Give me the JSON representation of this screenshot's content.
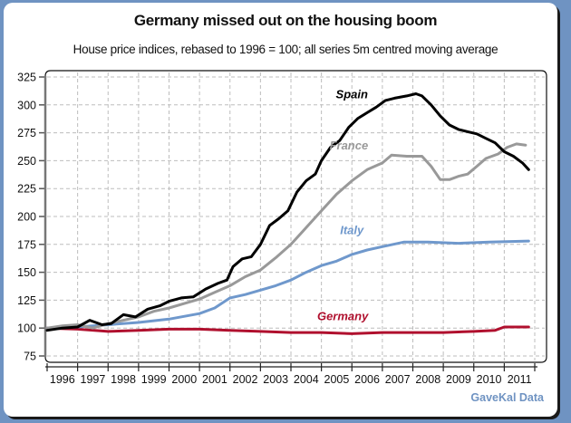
{
  "chart_data": {
    "type": "line",
    "title": "Germany missed out on the housing boom",
    "subtitle": "House price indices, rebased to 1996 = 100; all series 5m centred moving average",
    "source": "GaveKal Data",
    "xlabel": "",
    "ylabel": "",
    "xlim": [
      1996,
      2012
    ],
    "ylim": [
      75,
      325
    ],
    "yticks": [
      75,
      100,
      125,
      150,
      175,
      200,
      225,
      250,
      275,
      300,
      325
    ],
    "xtick_labels": [
      "1996",
      "1997",
      "1998",
      "1999",
      "2000",
      "2001",
      "2002",
      "2003",
      "2004",
      "2005",
      "2006",
      "2007",
      "2008",
      "2009",
      "2010",
      "2011"
    ],
    "grid": true,
    "legend": "inline labels",
    "series": [
      {
        "name": "Spain",
        "color": "#000000",
        "label_anchor": [
          2006.0,
          306
        ],
        "x": [
          1996.0,
          1996.5,
          1997.0,
          1997.4,
          1997.8,
          1998.1,
          1998.5,
          1998.9,
          1999.3,
          1999.7,
          2000.0,
          2000.4,
          2000.8,
          2001.2,
          2001.6,
          2001.9,
          2002.1,
          2002.4,
          2002.7,
          2003.0,
          2003.3,
          2003.6,
          2003.9,
          2004.2,
          2004.5,
          2004.8,
          2005.0,
          2005.3,
          2005.6,
          2005.9,
          2006.2,
          2006.5,
          2006.8,
          2007.1,
          2007.4,
          2007.8,
          2008.1,
          2008.3,
          2008.6,
          2008.9,
          2009.2,
          2009.5,
          2009.8,
          2010.1,
          2010.4,
          2010.7,
          2011.0,
          2011.3,
          2011.6,
          2011.8
        ],
        "y": [
          98,
          100,
          101,
          107,
          103,
          104,
          112,
          110,
          117,
          120,
          124,
          127,
          128,
          135,
          140,
          143,
          155,
          162,
          164,
          175,
          192,
          198,
          205,
          222,
          232,
          238,
          250,
          262,
          268,
          280,
          288,
          293,
          298,
          304,
          306,
          308,
          310,
          308,
          300,
          290,
          282,
          278,
          276,
          274,
          270,
          266,
          258,
          254,
          248,
          242
        ]
      },
      {
        "name": "France",
        "color": "#999999",
        "label_anchor": [
          2005.9,
          260
        ],
        "x": [
          1996.0,
          1996.5,
          1997.0,
          1997.5,
          1998.0,
          1998.5,
          1999.0,
          1999.5,
          2000.0,
          2000.5,
          2001.0,
          2001.5,
          2002.0,
          2002.5,
          2003.0,
          2003.5,
          2004.0,
          2004.5,
          2005.0,
          2005.5,
          2006.0,
          2006.5,
          2007.0,
          2007.3,
          2007.8,
          2008.3,
          2008.6,
          2008.9,
          2009.2,
          2009.5,
          2009.8,
          2010.1,
          2010.4,
          2010.8,
          2011.1,
          2011.4,
          2011.7
        ],
        "y": [
          100,
          102,
          103,
          100,
          104,
          107,
          110,
          115,
          118,
          122,
          126,
          132,
          138,
          146,
          152,
          163,
          175,
          190,
          205,
          220,
          232,
          242,
          248,
          255,
          254,
          254,
          245,
          233,
          233,
          236,
          238,
          245,
          252,
          256,
          262,
          265,
          264
        ]
      },
      {
        "name": "Italy",
        "color": "#6f98cc",
        "label_anchor": [
          2006.0,
          184
        ],
        "x": [
          1996.0,
          1997.0,
          1998.0,
          1999.0,
          2000.0,
          2001.0,
          2001.5,
          2002.0,
          2002.5,
          2003.0,
          2003.5,
          2004.0,
          2004.5,
          2005.0,
          2005.5,
          2006.0,
          2006.5,
          2007.0,
          2007.7,
          2008.5,
          2009.5,
          2010.5,
          2011.8
        ],
        "y": [
          100,
          101,
          103,
          105,
          108,
          113,
          118,
          127,
          130,
          134,
          138,
          143,
          150,
          156,
          160,
          166,
          170,
          173,
          177,
          177,
          176,
          177,
          178
        ]
      },
      {
        "name": "Germany",
        "color": "#b0102e",
        "label_anchor": [
          2005.7,
          107
        ],
        "x": [
          1996.0,
          1997.0,
          1998.0,
          1999.0,
          2000.0,
          2001.0,
          2002.0,
          2003.0,
          2004.0,
          2005.0,
          2006.0,
          2007.0,
          2008.0,
          2009.0,
          2010.0,
          2010.7,
          2011.0,
          2011.8
        ],
        "y": [
          100,
          99,
          97,
          98,
          99,
          99,
          98,
          97,
          96,
          96,
          95,
          96,
          96,
          96,
          97,
          98,
          101,
          101
        ]
      }
    ]
  }
}
